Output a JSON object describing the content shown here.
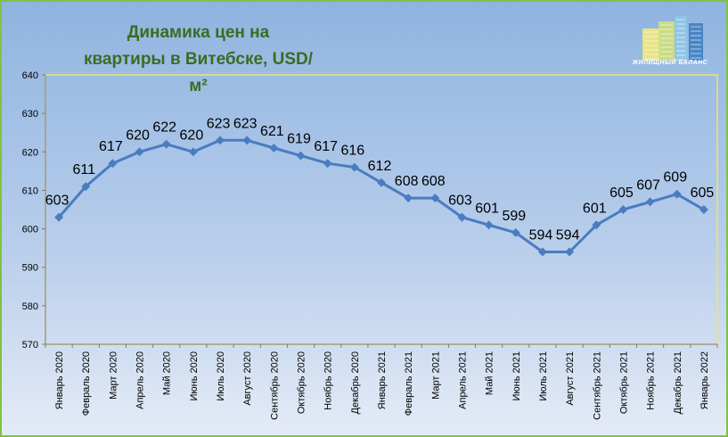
{
  "title": "Динамика цен на квартиры в Витебске, USD/м²",
  "logo": {
    "text": "ЖИЛИЩНЫЙ БАЛАНС",
    "colors": [
      "#f1e97a",
      "#cfe07a",
      "#8fc7e8",
      "#3f7fc4"
    ]
  },
  "colors": {
    "line": "#4a7cc0",
    "frame": "#7fc241",
    "plot_border": "#f3e26a",
    "title": "#3d6b22"
  },
  "chart_data": {
    "type": "line",
    "title": "Динамика цен на квартиры в Витебске, USD/м²",
    "xlabel": "",
    "ylabel": "",
    "ylim": [
      570,
      640
    ],
    "yticks": [
      570,
      580,
      590,
      600,
      610,
      620,
      630,
      640
    ],
    "grid": false,
    "legend": "none",
    "categories": [
      "Январь 2020",
      "Февраль 2020",
      "Март 2020",
      "Апрель 2020",
      "Май 2020",
      "Июнь 2020",
      "Июль 2020",
      "Август 2020",
      "Сентябрь 2020",
      "Октябрь 2020",
      "Ноябрь 2020",
      "Декабрь 2020",
      "Январь 2021",
      "Февраль 2021",
      "Март 2021",
      "Апрель 2021",
      "Май 2021",
      "Июнь 2021",
      "Июль 2021",
      "Август 2021",
      "Сентябрь 2021",
      "Октябрь 2021",
      "Ноябрь 2021",
      "Декабрь 2021",
      "Январь 2022"
    ],
    "series": [
      {
        "values": [
          603,
          611,
          617,
          620,
          622,
          620,
          623,
          623,
          621,
          619,
          617,
          616,
          612,
          608,
          608,
          603,
          601,
          599,
          594,
          594,
          601,
          605,
          607,
          609,
          605
        ]
      }
    ]
  }
}
